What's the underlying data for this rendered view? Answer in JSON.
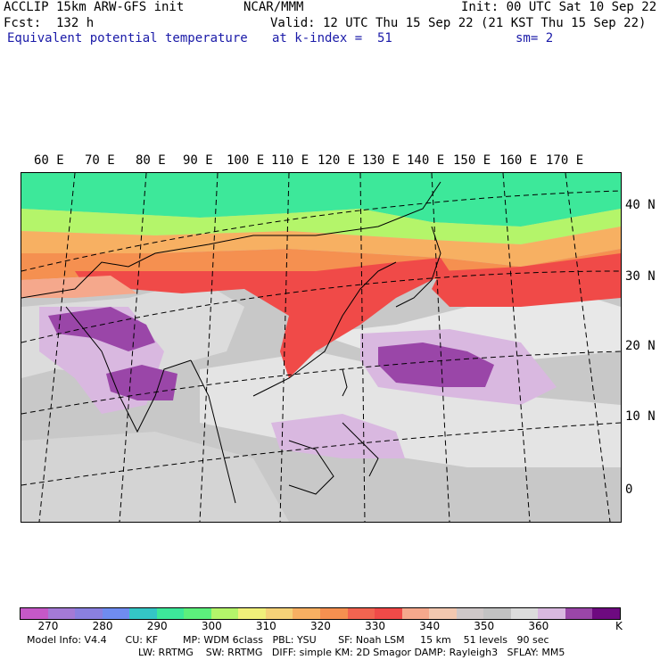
{
  "header": {
    "line1_left": "ACCLIP 15km ARW-GFS init",
    "line1_mid": "NCAR/MMM",
    "line1_right": "Init: 00 UTC Sat 10 Sep 22",
    "line2_left": "Fcst:  132 h",
    "line2_right": "Valid: 12 UTC Thu 15 Sep 22 (21 KST Thu 15 Sep 22)",
    "line3_left": "Equivalent potential temperature",
    "line3_mid": "at k-index =  51",
    "line3_right": "sm= 2"
  },
  "lon_labels": [
    "60 E",
    "70 E",
    "80 E",
    "90 E",
    "100 E",
    "110 E",
    "120 E",
    "130 E",
    "140 E",
    "150 E",
    "160 E",
    "170 E"
  ],
  "lat_labels": [
    "40 N",
    "30 N",
    "20 N",
    "10 N",
    "0"
  ],
  "colorbar": {
    "colors": [
      "#c558c8",
      "#a47ad6",
      "#8a80e0",
      "#6f8cf0",
      "#34c6c6",
      "#3de89a",
      "#5cf07c",
      "#b4f56a",
      "#f0f07a",
      "#f5d278",
      "#f7b062",
      "#f59050",
      "#f26450",
      "#f04a48",
      "#f5a88c",
      "#f2c8b0",
      "#cfc8c8",
      "#c2c2c2",
      "#dcdcdc",
      "#d9b8e0",
      "#9a46a8",
      "#6e0a80"
    ],
    "ticks": [
      "270",
      "280",
      "290",
      "300",
      "310",
      "320",
      "330",
      "340",
      "350",
      "360"
    ],
    "unit": "K"
  },
  "footer": {
    "line1": "Model Info: V4.4      CU: KF        MP: WDM 6class   PBL: YSU       SF: Noah LSM     15 km    51 levels   90 sec",
    "line2": "LW: RRTMG    SW: RRTMG   DIFF: simple KM: 2D Smagor DAMP: Rayleigh3   SFLAY: MM5"
  }
}
